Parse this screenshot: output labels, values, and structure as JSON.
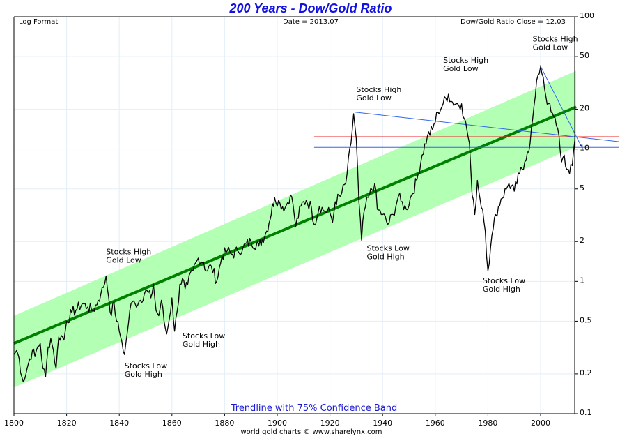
{
  "chart_data": {
    "type": "line",
    "title": "200 Years - Dow/Gold Ratio",
    "header_left": "Log Format",
    "header_center": "Date = 2013.07",
    "header_right": "Dow/Gold Ratio Close = 12.03",
    "subtitle": "Trendline with 75% Confidence Band",
    "credit": "world gold charts © www.sharelynx.com",
    "xlim": [
      1800,
      2013.5
    ],
    "ylim": [
      0.1,
      100
    ],
    "yscale": "log",
    "grid": true,
    "x_ticks": [
      "1800",
      "1820",
      "1840",
      "1860",
      "1880",
      "1900",
      "1920",
      "1940",
      "1960",
      "1980",
      "2000"
    ],
    "y_ticks": [
      "100",
      "50",
      "20",
      "10",
      "5",
      "2",
      "1",
      "0.5",
      "0.2",
      "0.1"
    ],
    "colors": {
      "title": "#1010e0",
      "price": "#000000",
      "trend": "#008000",
      "band": "#b3ffb3",
      "blue_lines": "#3366ee",
      "red_line": "#ee2222",
      "grid": "#e3eef8",
      "subtitle": "#1a1ad0"
    },
    "series": [
      {
        "name": "Dow/Gold Ratio",
        "x": [
          1800,
          1801,
          1802,
          1803,
          1804,
          1805,
          1806,
          1807,
          1808,
          1809,
          1810,
          1811,
          1812,
          1813,
          1814,
          1815,
          1816,
          1817,
          1818,
          1819,
          1820,
          1822,
          1824,
          1826,
          1828,
          1830,
          1832,
          1833,
          1834,
          1835,
          1836,
          1837,
          1838,
          1839,
          1840,
          1841,
          1842,
          1843,
          1844,
          1845,
          1846,
          1848,
          1850,
          1852,
          1853,
          1854,
          1855,
          1856,
          1857,
          1858,
          1859,
          1860,
          1861,
          1862,
          1863,
          1864,
          1865,
          1866,
          1868,
          1870,
          1872,
          1873,
          1875,
          1877,
          1879,
          1881,
          1883,
          1885,
          1887,
          1890,
          1893,
          1896,
          1899,
          1901,
          1903,
          1905,
          1906,
          1907,
          1909,
          1911,
          1913,
          1914,
          1916,
          1918,
          1920,
          1921,
          1922,
          1924,
          1926,
          1928,
          1929,
          1930,
          1931,
          1932,
          1933,
          1935,
          1937,
          1938,
          1940,
          1942,
          1944,
          1946,
          1947,
          1949,
          1951,
          1953,
          1955,
          1957,
          1959,
          1961,
          1963,
          1965,
          1966,
          1968,
          1970,
          1971,
          1972,
          1973,
          1974,
          1975,
          1976,
          1977,
          1978,
          1979,
          1980,
          1981,
          1982,
          1983,
          1985,
          1987,
          1988,
          1990,
          1992,
          1994,
          1995,
          1996,
          1997,
          1998,
          1999,
          2000,
          2001,
          2002,
          2003,
          2004,
          2005,
          2006,
          2007,
          2008,
          2009,
          2010,
          2011,
          2012,
          2013.07
        ],
        "values": [
          0.28,
          0.3,
          0.26,
          0.19,
          0.18,
          0.22,
          0.26,
          0.3,
          0.27,
          0.32,
          0.34,
          0.22,
          0.19,
          0.32,
          0.37,
          0.3,
          0.22,
          0.38,
          0.39,
          0.36,
          0.5,
          0.58,
          0.62,
          0.68,
          0.64,
          0.6,
          0.72,
          0.8,
          0.9,
          1.1,
          0.75,
          0.55,
          0.7,
          0.5,
          0.42,
          0.35,
          0.28,
          0.4,
          0.6,
          0.7,
          0.68,
          0.72,
          0.85,
          0.75,
          0.95,
          0.6,
          0.55,
          0.72,
          0.5,
          0.4,
          0.52,
          0.75,
          0.42,
          0.6,
          0.95,
          1.05,
          0.88,
          0.95,
          1.2,
          1.5,
          1.4,
          1.2,
          1.3,
          1.0,
          1.55,
          1.7,
          1.6,
          1.7,
          1.8,
          2.0,
          1.85,
          2.4,
          4.3,
          3.9,
          3.6,
          4.5,
          3.8,
          2.6,
          3.7,
          4.1,
          3.6,
          2.7,
          3.7,
          3.4,
          3.3,
          2.8,
          4.0,
          4.4,
          5.5,
          11.0,
          18.5,
          12.0,
          4.0,
          2.05,
          3.4,
          4.5,
          5.5,
          3.5,
          3.2,
          2.7,
          3.2,
          4.4,
          4.0,
          3.5,
          4.5,
          5.8,
          9.0,
          12.5,
          14.0,
          19.0,
          22.0,
          26.0,
          23.0,
          22.0,
          22.0,
          17.0,
          14.0,
          11.0,
          4.5,
          3.2,
          5.8,
          4.2,
          3.5,
          2.4,
          1.2,
          1.8,
          2.5,
          3.2,
          4.2,
          5.0,
          5.5,
          4.8,
          6.5,
          8.0,
          9.5,
          11.0,
          17.0,
          25.0,
          36.0,
          42.0,
          35.0,
          25.0,
          22.0,
          19.0,
          17.5,
          15.0,
          12.5,
          8.0,
          9.0,
          7.0,
          6.5,
          7.5,
          12.03
        ]
      },
      {
        "name": "Trendline",
        "x": [
          1800,
          2013.5
        ],
        "values": [
          0.34,
          20.8
        ]
      },
      {
        "name": "75% Confidence Band Upper",
        "x": [
          1800,
          2013.5
        ],
        "values": [
          0.55,
          39.0
        ]
      },
      {
        "name": "75% Confidence Band Lower",
        "x": [
          1800,
          2013.5
        ],
        "values": [
          0.158,
          10.4
        ]
      },
      {
        "name": "Resistance line from 1929 peak",
        "x": [
          1929.5,
          2031
        ],
        "values": [
          19.0,
          11.3
        ]
      },
      {
        "name": "Resistance line from 2000 peak",
        "x": [
          1999.8,
          2016
        ],
        "values": [
          43.0,
          10.0
        ]
      },
      {
        "name": "Red horizontal level",
        "x": [
          1914,
          2031
        ],
        "values": [
          12.4,
          12.4
        ]
      },
      {
        "name": "Blue horizontal level",
        "x": [
          1914,
          2031
        ],
        "values": [
          10.3,
          10.3
        ]
      }
    ],
    "annotations": [
      {
        "line1": "Stocks High",
        "line2": "Gold Low",
        "x": 1835,
        "y": 1.6
      },
      {
        "line1": "Stocks Low",
        "line2": "Gold High",
        "x": 1842,
        "y": 0.22
      },
      {
        "line1": "Stocks Low",
        "line2": "Gold High",
        "x": 1864,
        "y": 0.37
      },
      {
        "line1": "Stocks High",
        "line2": "Gold Low",
        "x": 1930,
        "y": 27
      },
      {
        "line1": "Stocks Low",
        "line2": "Gold High",
        "x": 1934,
        "y": 1.7
      },
      {
        "line1": "Stocks High",
        "line2": "Gold Low",
        "x": 1963,
        "y": 45
      },
      {
        "line1": "Stocks Low",
        "line2": "Gold High",
        "x": 1978,
        "y": 0.97
      },
      {
        "line1": "Stocks High",
        "line2": "Gold Low",
        "x": 1997,
        "y": 65
      }
    ]
  }
}
